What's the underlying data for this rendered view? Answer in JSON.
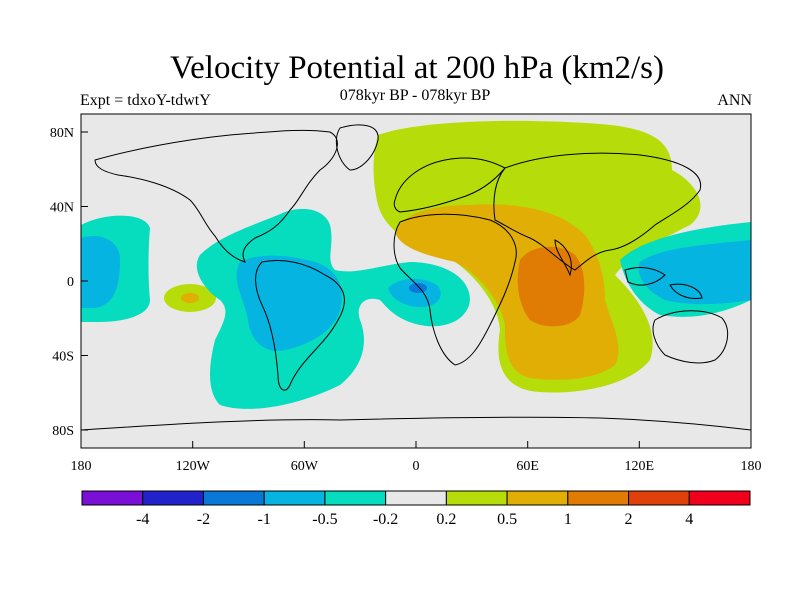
{
  "title": "Velocity Potential at 200 hPa (km2/s)",
  "left_label": "Expt = tdxoY-tdwtY",
  "center_label": "078kyr BP - 078kyr BP",
  "right_label": "ANN",
  "axes": {
    "lon_ticks": [
      "180",
      "120W",
      "60W",
      "0",
      "60E",
      "120E",
      "180"
    ],
    "lat_ticks": [
      "80N",
      "40N",
      "0",
      "40S",
      "80S"
    ]
  },
  "colorbar": {
    "colors": [
      "#7a0fd6",
      "#2222cc",
      "#0a78d6",
      "#06b4e2",
      "#06dcbe",
      "#e8e8e8",
      "#b6dc0a",
      "#e0ae04",
      "#e07c04",
      "#e0400a",
      "#f0001c"
    ],
    "labels": [
      "-4",
      "-2",
      "-1",
      "-0.5",
      "-0.2",
      "0.2",
      "0.5",
      "1",
      "2",
      "4"
    ]
  },
  "map_colors": {
    "background": "#e8e8e8",
    "coastline": "#000000"
  }
}
